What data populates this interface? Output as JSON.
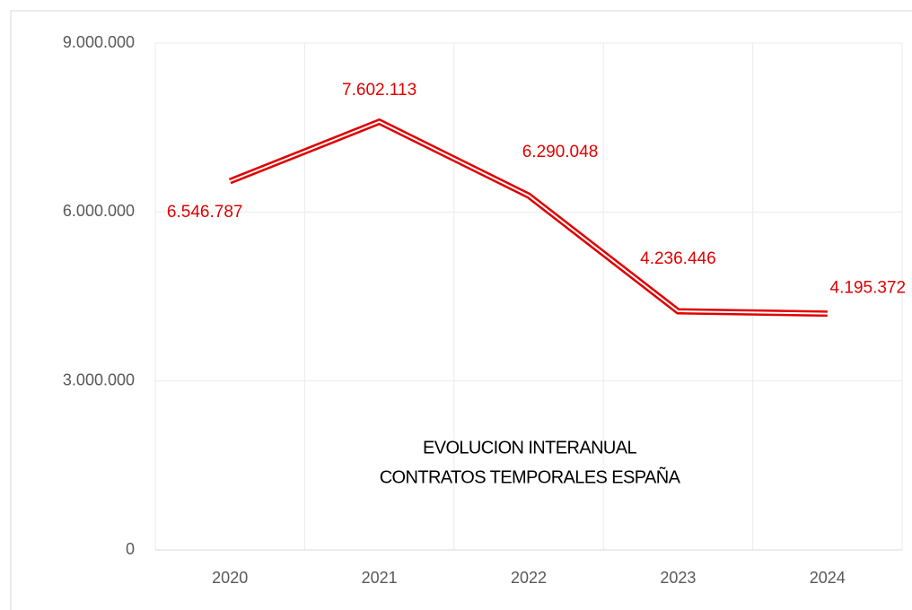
{
  "chart_data": {
    "type": "line",
    "title": [
      "EVOLUCION INTERANUAL",
      "CONTRATOS TEMPORALES ESPAÑA"
    ],
    "categories": [
      "2020",
      "2021",
      "2022",
      "2023",
      "2024"
    ],
    "values": [
      6546787,
      7602113,
      6290048,
      4236446,
      4195372
    ],
    "value_labels": [
      "6.546.787",
      "7.602.113",
      "6.290.048",
      "4.236.446",
      "4.195.372"
    ],
    "color": "#e00000",
    "ylim": [
      0,
      9000000
    ],
    "yticks": [
      0,
      {
        "value": 3000000,
        "label": "3.000.000"
      },
      {
        "value": 6000000,
        "label": "6.000.000"
      },
      {
        "value": 9000000,
        "label": "9.000.000"
      }
    ],
    "grid": true
  }
}
